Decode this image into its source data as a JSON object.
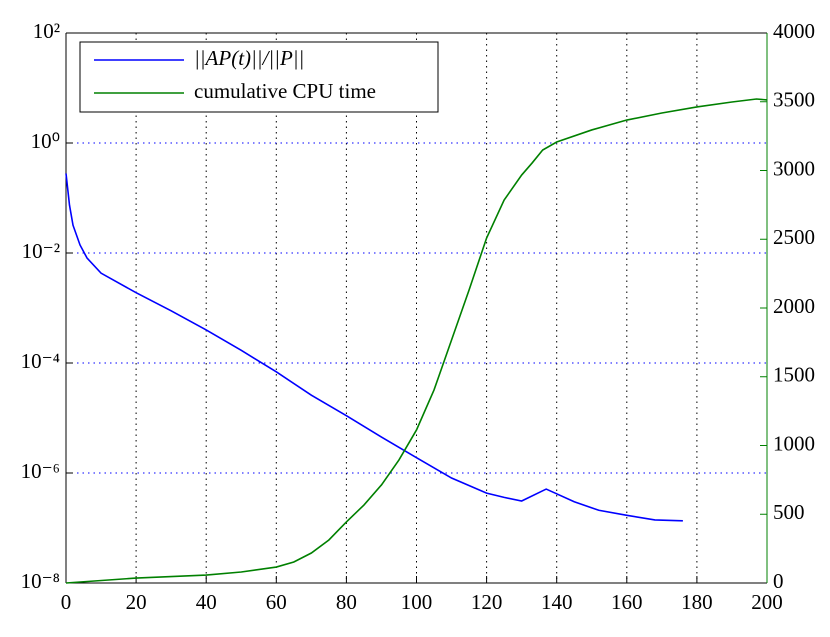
{
  "chart_data": {
    "type": "line",
    "xlim": [
      0,
      200
    ],
    "xticks": [
      0,
      20,
      40,
      60,
      80,
      100,
      120,
      140,
      160,
      180,
      200
    ],
    "ylim": [
      1e-08,
      100
    ],
    "ylog": true,
    "yticks": [
      {
        "value": 1e-08,
        "label": "10⁻⁸"
      },
      {
        "value": 1e-06,
        "label": "10⁻⁶"
      },
      {
        "value": 0.0001,
        "label": "10⁻⁴"
      },
      {
        "value": 0.01,
        "label": "10⁻²"
      },
      {
        "value": 1,
        "label": "10⁰"
      },
      {
        "value": 100,
        "label": "10²"
      }
    ],
    "y2lim": [
      0,
      4000
    ],
    "y2ticks": [
      0,
      500,
      1000,
      1500,
      2000,
      2500,
      3000,
      3500,
      4000
    ],
    "grid": true,
    "legend": "upper left",
    "series": [
      {
        "name": "||AP(t)||/||P||",
        "color": "#0000ff",
        "x": [
          0,
          1,
          2,
          4,
          6,
          10,
          20,
          30,
          40,
          50,
          60,
          70,
          80,
          90,
          100,
          110,
          120,
          125,
          130,
          137,
          145,
          152,
          160,
          168,
          176
        ],
        "values": [
          0.28,
          0.074,
          0.032,
          0.014,
          0.0081,
          0.0043,
          0.0019,
          0.00089,
          0.0004,
          0.00017,
          6.9e-05,
          2.6e-05,
          1.1e-05,
          4.5e-06,
          1.9e-06,
          8.1e-07,
          4.3e-07,
          3.6e-07,
          3.1e-07,
          5.1e-07,
          3e-07,
          2.1e-07,
          1.7e-07,
          1.4e-07,
          1.35e-07
        ]
      },
      {
        "name": "cumulative CPU time",
        "color": "#008000",
        "axis": "y2",
        "x": [
          0,
          20,
          40,
          50,
          60,
          65,
          70,
          75,
          80,
          85,
          90,
          95,
          100,
          105,
          110,
          115,
          120,
          125,
          130,
          133,
          136,
          140,
          150,
          160,
          170,
          180,
          190,
          197,
          200
        ],
        "values": [
          0,
          36,
          58,
          80,
          116,
          153,
          218,
          313,
          444,
          567,
          713,
          895,
          1113,
          1404,
          1767,
          2131,
          2509,
          2785,
          2967,
          3055,
          3149,
          3207,
          3295,
          3367,
          3418,
          3462,
          3498,
          3520,
          3513
        ]
      }
    ]
  }
}
